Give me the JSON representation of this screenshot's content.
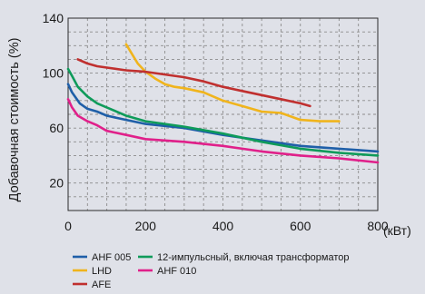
{
  "chart_data": {
    "type": "line",
    "title": "",
    "xlabel": "(кВт)",
    "ylabel": "Добавочная стоимость (%)",
    "xlim": [
      0,
      800
    ],
    "ylim": [
      0,
      140
    ],
    "x_ticks": [
      0,
      200,
      400,
      600,
      800
    ],
    "y_ticks": [
      20,
      60,
      100,
      140
    ],
    "grid": true,
    "legend_position": "bottom",
    "series": [
      {
        "name": "AHF 005",
        "color": "#1f5fa8",
        "points": [
          [
            0,
            92
          ],
          [
            10,
            86
          ],
          [
            30,
            78
          ],
          [
            50,
            74
          ],
          [
            75,
            72
          ],
          [
            100,
            69
          ],
          [
            150,
            66
          ],
          [
            200,
            63
          ],
          [
            300,
            60
          ],
          [
            400,
            55
          ],
          [
            500,
            51
          ],
          [
            600,
            47
          ],
          [
            700,
            45
          ],
          [
            800,
            43
          ]
        ]
      },
      {
        "name": "12-импульсный, включая трансформатор",
        "color": "#0f9b5a",
        "points": [
          [
            0,
            103
          ],
          [
            10,
            98
          ],
          [
            25,
            90
          ],
          [
            50,
            83
          ],
          [
            75,
            78
          ],
          [
            100,
            75
          ],
          [
            150,
            69
          ],
          [
            200,
            65
          ],
          [
            300,
            61
          ],
          [
            400,
            56
          ],
          [
            500,
            50
          ],
          [
            600,
            45
          ],
          [
            700,
            42
          ],
          [
            800,
            40
          ]
        ]
      },
      {
        "name": "LHD",
        "color": "#f0b41c",
        "points": [
          [
            150,
            121
          ],
          [
            165,
            114
          ],
          [
            180,
            107
          ],
          [
            200,
            101
          ],
          [
            225,
            96
          ],
          [
            250,
            92
          ],
          [
            275,
            90
          ],
          [
            300,
            89
          ],
          [
            350,
            86
          ],
          [
            400,
            80
          ],
          [
            450,
            76
          ],
          [
            500,
            72
          ],
          [
            550,
            71
          ],
          [
            600,
            66
          ],
          [
            650,
            65
          ],
          [
            700,
            65
          ]
        ]
      },
      {
        "name": "AHF 010",
        "color": "#e0208a",
        "points": [
          [
            0,
            81
          ],
          [
            10,
            75
          ],
          [
            25,
            69
          ],
          [
            50,
            65
          ],
          [
            75,
            62
          ],
          [
            100,
            58
          ],
          [
            150,
            55
          ],
          [
            200,
            52
          ],
          [
            300,
            50
          ],
          [
            400,
            47
          ],
          [
            500,
            43
          ],
          [
            600,
            40
          ],
          [
            700,
            38
          ],
          [
            800,
            35
          ]
        ]
      },
      {
        "name": "AFE",
        "color": "#c0302f",
        "points": [
          [
            25,
            110
          ],
          [
            50,
            107
          ],
          [
            75,
            105
          ],
          [
            100,
            104
          ],
          [
            150,
            102
          ],
          [
            200,
            101
          ],
          [
            250,
            99
          ],
          [
            300,
            97
          ],
          [
            350,
            94
          ],
          [
            400,
            90
          ],
          [
            450,
            87
          ],
          [
            500,
            84
          ],
          [
            550,
            81
          ],
          [
            600,
            78
          ],
          [
            625,
            76
          ]
        ]
      }
    ]
  }
}
